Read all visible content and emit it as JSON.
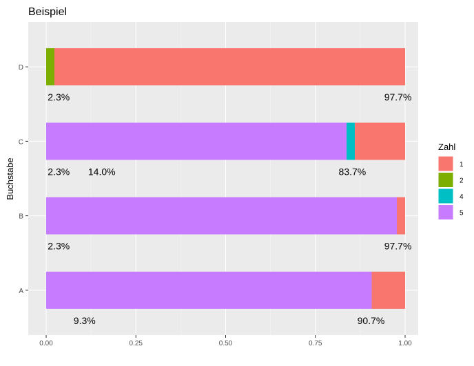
{
  "chart_data": {
    "type": "bar",
    "orientation": "horizontal",
    "stacked": true,
    "title": "Beispiel",
    "xlabel": "",
    "ylabel": "Buchstabe",
    "xlim": [
      0,
      1
    ],
    "x_ticks": [
      "0.00",
      "0.25",
      "0.50",
      "0.75",
      "1.00"
    ],
    "x_tick_values": [
      0,
      0.25,
      0.5,
      0.75,
      1
    ],
    "categories": [
      "A",
      "B",
      "C",
      "D"
    ],
    "legend": {
      "title": "Zahl",
      "placement": "right",
      "entries": [
        {
          "label": "1",
          "color": "#F8766D"
        },
        {
          "label": "2",
          "color": "#7CAE00"
        },
        {
          "label": "4",
          "color": "#00BFC4"
        },
        {
          "label": "5",
          "color": "#C77CFF"
        }
      ]
    },
    "bars": [
      {
        "category": "A",
        "segments": [
          {
            "zahl": "5",
            "value": 0.907
          },
          {
            "zahl": "1",
            "value": 0.093
          }
        ]
      },
      {
        "category": "B",
        "segments": [
          {
            "zahl": "5",
            "value": 0.977
          },
          {
            "zahl": "1",
            "value": 0.023
          }
        ]
      },
      {
        "category": "C",
        "segments": [
          {
            "zahl": "5",
            "value": 0.837
          },
          {
            "zahl": "4",
            "value": 0.023
          },
          {
            "zahl": "1",
            "value": 0.14
          }
        ]
      },
      {
        "category": "D",
        "segments": [
          {
            "zahl": "2",
            "value": 0.023
          },
          {
            "zahl": "1",
            "value": 0.977
          }
        ]
      }
    ],
    "annotations": [
      {
        "category": "D",
        "text": "2.3%",
        "x": 0.035
      },
      {
        "category": "D",
        "text": "97.7%",
        "x": 0.98
      },
      {
        "category": "C",
        "text": "2.3%",
        "x": 0.035
      },
      {
        "category": "C",
        "text": "14.0%",
        "x": 0.155
      },
      {
        "category": "C",
        "text": "83.7%",
        "x": 0.853
      },
      {
        "category": "B",
        "text": "2.3%",
        "x": 0.035
      },
      {
        "category": "B",
        "text": "97.7%",
        "x": 0.98
      },
      {
        "category": "A",
        "text": "9.3%",
        "x": 0.107
      },
      {
        "category": "A",
        "text": "90.7%",
        "x": 0.905
      }
    ]
  }
}
